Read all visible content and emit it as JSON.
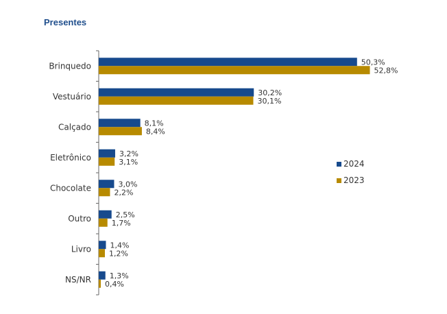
{
  "title": "Presentes",
  "colors": {
    "title": "#1f4e8c",
    "series_2024": "#174a8d",
    "series_2023": "#b78a00",
    "axis": "#666666"
  },
  "chart_data": {
    "type": "bar",
    "orientation": "horizontal",
    "title": "Presentes",
    "categories": [
      "Brinquedo",
      "Vestuário",
      "Calçado",
      "Eletrônico",
      "Chocolate",
      "Outro",
      "Livro",
      "NS/NR"
    ],
    "series": [
      {
        "name": "2024",
        "color": "#174a8d",
        "values": [
          50.3,
          30.2,
          8.1,
          3.2,
          3.0,
          2.5,
          1.4,
          1.3
        ],
        "labels": [
          "50,3%",
          "30,2%",
          "8,1%",
          "3,2%",
          "3,0%",
          "2,5%",
          "1,4%",
          "1,3%"
        ]
      },
      {
        "name": "2023",
        "color": "#b78a00",
        "values": [
          52.8,
          30.1,
          8.4,
          3.1,
          2.2,
          1.7,
          1.2,
          0.4
        ],
        "labels": [
          "52,8%",
          "30,1%",
          "8,4%",
          "3,1%",
          "2,2%",
          "1,7%",
          "1,2%",
          "0,4%"
        ]
      }
    ],
    "xlim": [
      0,
      55
    ],
    "unit": "%",
    "grid": false,
    "legend_position": "right"
  }
}
